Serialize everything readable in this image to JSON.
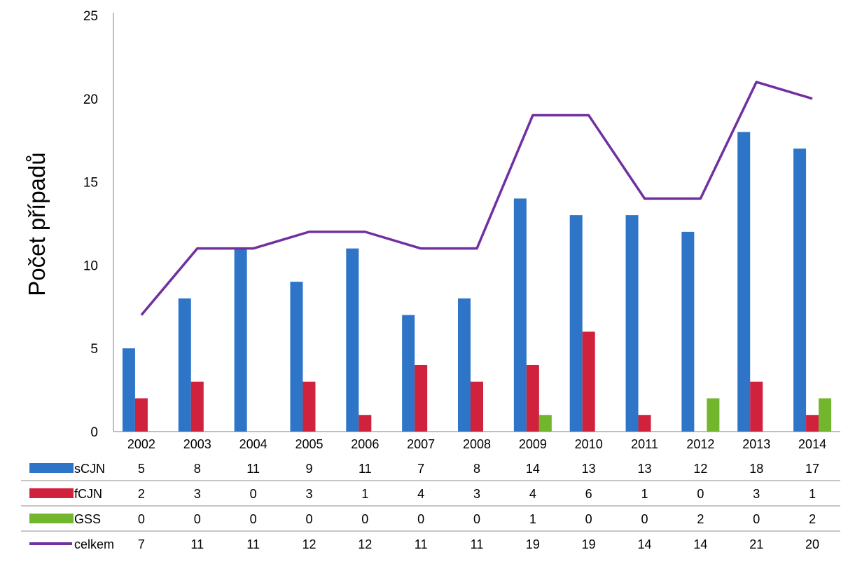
{
  "chart_data": {
    "type": "bar",
    "title": "",
    "xlabel": "",
    "ylabel": "Počet případů",
    "ylim": [
      0,
      25
    ],
    "yticks": [
      0,
      5,
      10,
      15,
      20,
      25
    ],
    "grid": false,
    "legend_placement": "data-table-left",
    "categories": [
      "2002",
      "2003",
      "2004",
      "2005",
      "2006",
      "2007",
      "2008",
      "2009",
      "2010",
      "2011",
      "2012",
      "2013",
      "2014"
    ],
    "series": [
      {
        "name": "sCJN",
        "type": "bar",
        "color": "#2E75C8",
        "values": [
          5,
          8,
          11,
          9,
          11,
          7,
          8,
          14,
          13,
          13,
          12,
          18,
          17
        ]
      },
      {
        "name": "fCJN",
        "type": "bar",
        "color": "#D0213D",
        "values": [
          2,
          3,
          0,
          3,
          1,
          4,
          3,
          4,
          6,
          1,
          0,
          3,
          1
        ]
      },
      {
        "name": "GSS",
        "type": "bar",
        "color": "#72B62E",
        "values": [
          0,
          0,
          0,
          0,
          0,
          0,
          0,
          1,
          0,
          0,
          2,
          0,
          2
        ]
      },
      {
        "name": "celkem",
        "type": "line",
        "color": "#7030A0",
        "values": [
          7,
          11,
          11,
          12,
          12,
          11,
          11,
          19,
          19,
          14,
          14,
          21,
          20
        ]
      }
    ]
  }
}
